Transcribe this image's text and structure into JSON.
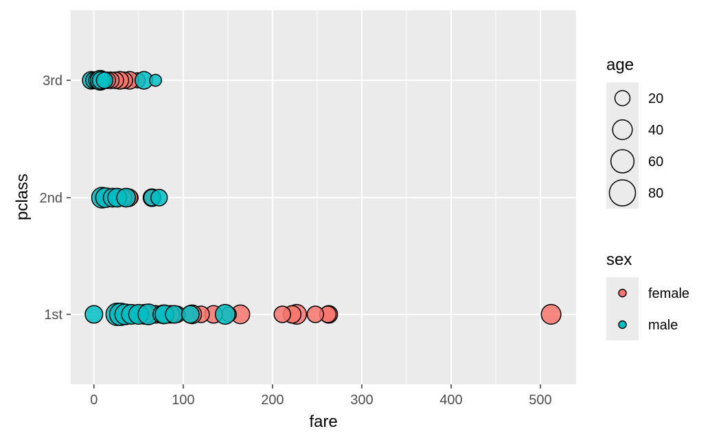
{
  "chart_data": {
    "type": "scatter",
    "xlabel": "fare",
    "ylabel": "pclass",
    "xlim": [
      -26,
      540
    ],
    "x_ticks": [
      0,
      100,
      200,
      300,
      400,
      500
    ],
    "x_tick_labels": [
      "0",
      "100",
      "200",
      "300",
      "400",
      "500"
    ],
    "categories": [
      "1st",
      "2nd",
      "3rd"
    ],
    "grid": true,
    "legend_position": "right",
    "size_legend": {
      "title": "age",
      "values": [
        20,
        40,
        60,
        80
      ],
      "labels": [
        "20",
        "40",
        "60",
        "80"
      ]
    },
    "color_legend": {
      "title": "sex",
      "entries": [
        {
          "label": "female",
          "color": "#F8766D"
        },
        {
          "label": "male",
          "color": "#00BFC4"
        }
      ]
    },
    "series": [
      {
        "name": "female",
        "color": "#F8766D",
        "points": [
          {
            "x": 512,
            "y": "1st",
            "age": 40
          },
          {
            "x": 263,
            "y": "1st",
            "age": 30
          },
          {
            "x": 262,
            "y": "1st",
            "age": 25
          },
          {
            "x": 248,
            "y": "1st",
            "age": 25
          },
          {
            "x": 227,
            "y": "1st",
            "age": 40
          },
          {
            "x": 222,
            "y": "1st",
            "age": 30
          },
          {
            "x": 211,
            "y": "1st",
            "age": 25
          },
          {
            "x": 164,
            "y": "1st",
            "age": 35
          },
          {
            "x": 151,
            "y": "1st",
            "age": 20
          },
          {
            "x": 134,
            "y": "1st",
            "age": 30
          },
          {
            "x": 120,
            "y": "1st",
            "age": 25
          },
          {
            "x": 110,
            "y": "1st",
            "age": 35
          },
          {
            "x": 93,
            "y": "1st",
            "age": 25
          },
          {
            "x": 86,
            "y": "1st",
            "age": 30
          },
          {
            "x": 78,
            "y": "1st",
            "age": 35
          },
          {
            "x": 69,
            "y": "1st",
            "age": 30
          },
          {
            "x": 57,
            "y": "1st",
            "age": 40
          },
          {
            "x": 52,
            "y": "1st",
            "age": 25
          },
          {
            "x": 65,
            "y": "2nd",
            "age": 30
          },
          {
            "x": 41,
            "y": "2nd",
            "age": 20
          },
          {
            "x": 39,
            "y": "2nd",
            "age": 30
          },
          {
            "x": 33,
            "y": "2nd",
            "age": 25
          },
          {
            "x": 27,
            "y": "2nd",
            "age": 30
          },
          {
            "x": 26,
            "y": "2nd",
            "age": 25
          },
          {
            "x": 13,
            "y": "2nd",
            "age": 25
          },
          {
            "x": 11,
            "y": "2nd",
            "age": 30
          },
          {
            "x": 49,
            "y": "3rd",
            "age": 20
          },
          {
            "x": 40,
            "y": "3rd",
            "age": 30
          },
          {
            "x": 34,
            "y": "3rd",
            "age": 25
          },
          {
            "x": 29,
            "y": "3rd",
            "age": 30
          },
          {
            "x": 24,
            "y": "3rd",
            "age": 25
          },
          {
            "x": 19,
            "y": "3rd",
            "age": 25
          },
          {
            "x": 15,
            "y": "3rd",
            "age": 25
          },
          {
            "x": 11,
            "y": "3rd",
            "age": 20
          }
        ]
      },
      {
        "name": "male",
        "color": "#00BFC4",
        "points": [
          {
            "x": 0,
            "y": "1st",
            "age": 30
          },
          {
            "x": 26,
            "y": "1st",
            "age": 55
          },
          {
            "x": 30,
            "y": "1st",
            "age": 55
          },
          {
            "x": 35,
            "y": "1st",
            "age": 45
          },
          {
            "x": 42,
            "y": "1st",
            "age": 40
          },
          {
            "x": 50,
            "y": "1st",
            "age": 40
          },
          {
            "x": 61,
            "y": "1st",
            "age": 45
          },
          {
            "x": 76,
            "y": "1st",
            "age": 30
          },
          {
            "x": 79,
            "y": "1st",
            "age": 35
          },
          {
            "x": 90,
            "y": "1st",
            "age": 30
          },
          {
            "x": 108,
            "y": "1st",
            "age": 30
          },
          {
            "x": 147,
            "y": "1st",
            "age": 40
          },
          {
            "x": 9,
            "y": "2nd",
            "age": 45
          },
          {
            "x": 13,
            "y": "2nd",
            "age": 40
          },
          {
            "x": 21,
            "y": "2nd",
            "age": 35
          },
          {
            "x": 26,
            "y": "2nd",
            "age": 35
          },
          {
            "x": 36,
            "y": "2nd",
            "age": 35
          },
          {
            "x": 65,
            "y": "2nd",
            "age": 25
          },
          {
            "x": 73,
            "y": "2nd",
            "age": 25
          },
          {
            "x": -3,
            "y": "3rd",
            "age": 30
          },
          {
            "x": 0,
            "y": "3rd",
            "age": 25
          },
          {
            "x": 4,
            "y": "3rd",
            "age": 30
          },
          {
            "x": 7,
            "y": "3rd",
            "age": 40
          },
          {
            "x": 8,
            "y": "3rd",
            "age": 30
          },
          {
            "x": 12,
            "y": "3rd",
            "age": 25
          },
          {
            "x": 56,
            "y": "3rd",
            "age": 30
          },
          {
            "x": 69,
            "y": "3rd",
            "age": 10
          }
        ]
      }
    ]
  }
}
